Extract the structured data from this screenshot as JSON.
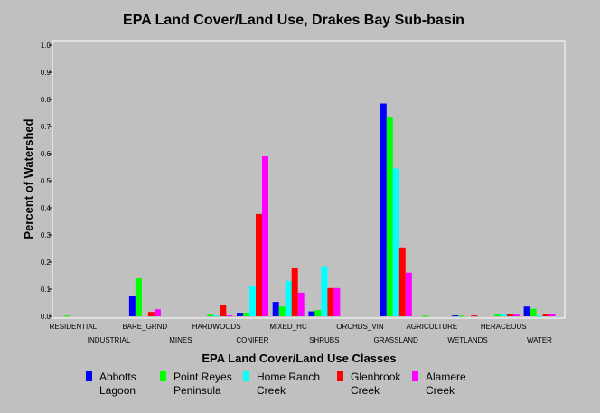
{
  "chart_data": {
    "type": "bar",
    "title": "EPA Land Cover/Land Use, Drakes Bay Sub-basin",
    "xlabel": "EPA Land Cover/Land Use Classes",
    "ylabel": "Percent of Watershed",
    "ylim": [
      0,
      1.0
    ],
    "yticks": [
      "0.0",
      "0.1",
      "0.2",
      "0.3",
      "0.4",
      "0.5",
      "0.6",
      "0.7",
      "0.8",
      "0.9",
      "1.0"
    ],
    "grid": false,
    "legend_position": "bottom",
    "categories": [
      "RESIDENTIAL",
      "INDUSTRIAL",
      "BARE_GRND",
      "MINES",
      "HARDWOODS",
      "CONIFER",
      "MIXED_HC",
      "SHRUBS",
      "ORCHDS_VIN",
      "GRASSLAND",
      "AGRICULTURE",
      "WETLANDS",
      "HERACEOUS",
      "WATER"
    ],
    "series": [
      {
        "name": "Abbotts Lagoon",
        "legend_lines": [
          "Abbotts",
          "Lagoon"
        ],
        "color": "#0000ff",
        "values": [
          0,
          0,
          0.074,
          0,
          0,
          0.013,
          0.053,
          0.018,
          0,
          0.785,
          0,
          0.003,
          0,
          0.036
        ]
      },
      {
        "name": "Point Reyes Peninsula",
        "legend_lines": [
          "Point Reyes",
          "Peninsula"
        ],
        "color": "#00ff00",
        "values": [
          0.003,
          0,
          0.14,
          0,
          0.006,
          0.013,
          0.036,
          0.023,
          0,
          0.733,
          0.002,
          0.002,
          0.006,
          0.028
        ]
      },
      {
        "name": "Home Ranch Creek",
        "legend_lines": [
          "Home Ranch",
          "Creek"
        ],
        "color": "#00ffff",
        "values": [
          0,
          0,
          0,
          0,
          0.003,
          0.113,
          0.13,
          0.185,
          0,
          0.545,
          0,
          0,
          0.007,
          0.002
        ]
      },
      {
        "name": "Glenbrook Creek",
        "legend_lines": [
          "Glenbrook",
          "Creek"
        ],
        "color": "#ff0000",
        "values": [
          0,
          0,
          0.016,
          0,
          0.043,
          0.377,
          0.177,
          0.104,
          0,
          0.254,
          0,
          0.003,
          0.01,
          0.007
        ]
      },
      {
        "name": "Alamere Creek",
        "legend_lines": [
          "Alamere",
          "Creek"
        ],
        "color": "#ff00ff",
        "values": [
          0,
          0,
          0.026,
          0,
          0.003,
          0.59,
          0.087,
          0.104,
          0,
          0.161,
          0,
          0,
          0.006,
          0.01
        ]
      }
    ]
  }
}
